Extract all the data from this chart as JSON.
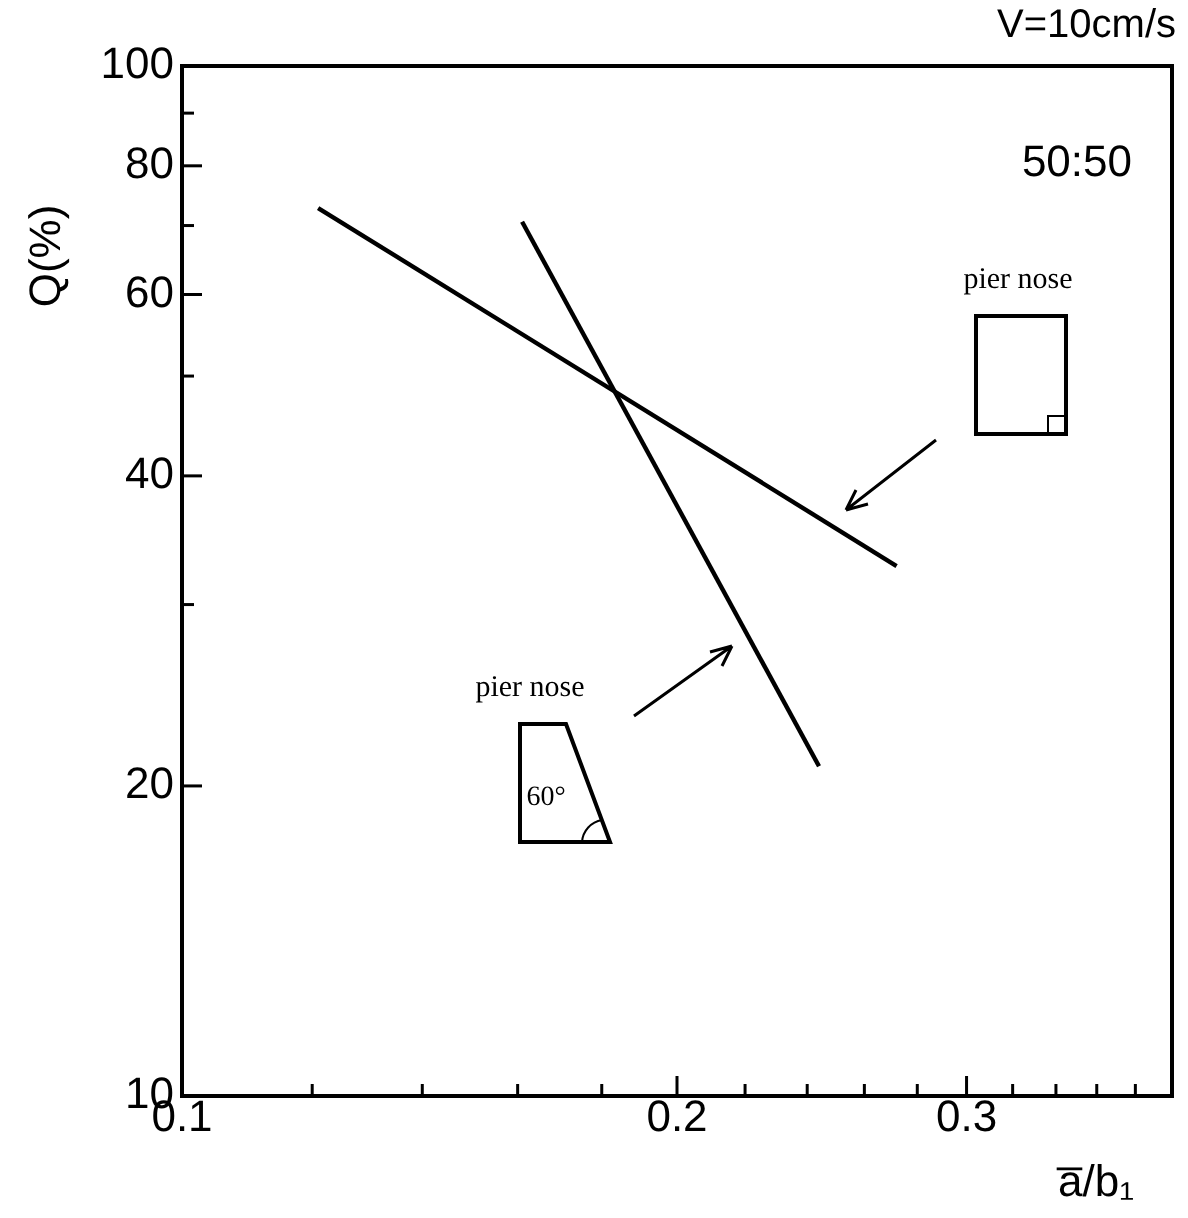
{
  "chart_data": {
    "type": "line",
    "xlabel": "a̅/b₁",
    "ylabel": "Q(%)",
    "annotations": [
      "V=10cm/s",
      "50:50",
      "pier nose",
      "pier nose",
      "60°"
    ],
    "series": [
      {
        "x": [
          0.121,
          0.272
        ],
        "values": [
          72.8,
          32.7
        ],
        "color": "#000000"
      },
      {
        "x": [
          0.161,
          0.244
        ],
        "values": [
          70.6,
          20.9
        ],
        "color": "#000000"
      }
    ],
    "log": "xy",
    "xlim": [
      0.1,
      0.4
    ],
    "ylim": [
      10,
      100
    ],
    "xticks": [
      0.1,
      {
        "value": 0.12,
        "label": null
      },
      {
        "value": 0.14,
        "label": null
      },
      {
        "value": 0.16,
        "label": null
      },
      {
        "value": 0.18,
        "label": null
      },
      0.2,
      {
        "value": 0.22,
        "label": null
      },
      {
        "value": 0.24,
        "label": null
      },
      {
        "value": 0.26,
        "label": null
      },
      {
        "value": 0.28,
        "label": null
      },
      0.3,
      {
        "value": 0.32,
        "label": null
      },
      {
        "value": 0.34,
        "label": null
      },
      {
        "value": 0.36,
        "label": null
      },
      {
        "value": 0.38,
        "label": null
      }
    ],
    "yticks": [
      10,
      20,
      {
        "value": 30,
        "label": null
      },
      40,
      {
        "value": 50,
        "label": null
      },
      60,
      {
        "value": 70,
        "label": null
      },
      80,
      {
        "value": 90,
        "label": null
      },
      100
    ],
    "grid": false,
    "legend": false,
    "marker": "none",
    "line_style": "solid"
  }
}
